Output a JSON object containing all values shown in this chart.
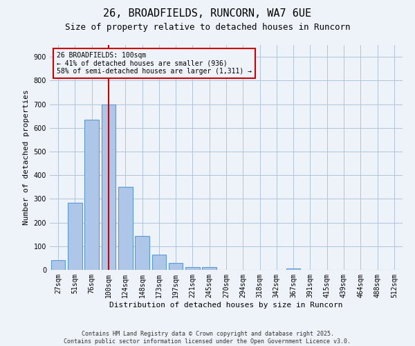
{
  "title1": "26, BROADFIELDS, RUNCORN, WA7 6UE",
  "title2": "Size of property relative to detached houses in Runcorn",
  "xlabel": "Distribution of detached houses by size in Runcorn",
  "ylabel": "Number of detached properties",
  "bar_labels": [
    "27sqm",
    "51sqm",
    "76sqm",
    "100sqm",
    "124sqm",
    "148sqm",
    "173sqm",
    "197sqm",
    "221sqm",
    "245sqm",
    "270sqm",
    "294sqm",
    "318sqm",
    "342sqm",
    "367sqm",
    "391sqm",
    "415sqm",
    "439sqm",
    "464sqm",
    "488sqm",
    "512sqm"
  ],
  "bar_values": [
    42,
    283,
    633,
    700,
    350,
    143,
    65,
    28,
    13,
    11,
    0,
    0,
    0,
    0,
    5,
    0,
    0,
    0,
    0,
    0,
    0
  ],
  "bar_color": "#aec6e8",
  "bar_edge_color": "#5b9bd5",
  "vline_index": 3,
  "vline_color": "#cc0000",
  "annotation_text": "26 BROADFIELDS: 100sqm\n← 41% of detached houses are smaller (936)\n58% of semi-detached houses are larger (1,311) →",
  "ylim": [
    0,
    950
  ],
  "yticks": [
    0,
    100,
    200,
    300,
    400,
    500,
    600,
    700,
    800,
    900
  ],
  "grid_color": "#b0c4de",
  "bg_color": "#eef3f9",
  "footer": "Contains HM Land Registry data © Crown copyright and database right 2025.\nContains public sector information licensed under the Open Government Licence v3.0.",
  "title_fontsize": 11,
  "subtitle_fontsize": 9,
  "xlabel_fontsize": 8,
  "ylabel_fontsize": 8,
  "footer_fontsize": 6,
  "tick_fontsize": 7,
  "ann_fontsize": 7
}
